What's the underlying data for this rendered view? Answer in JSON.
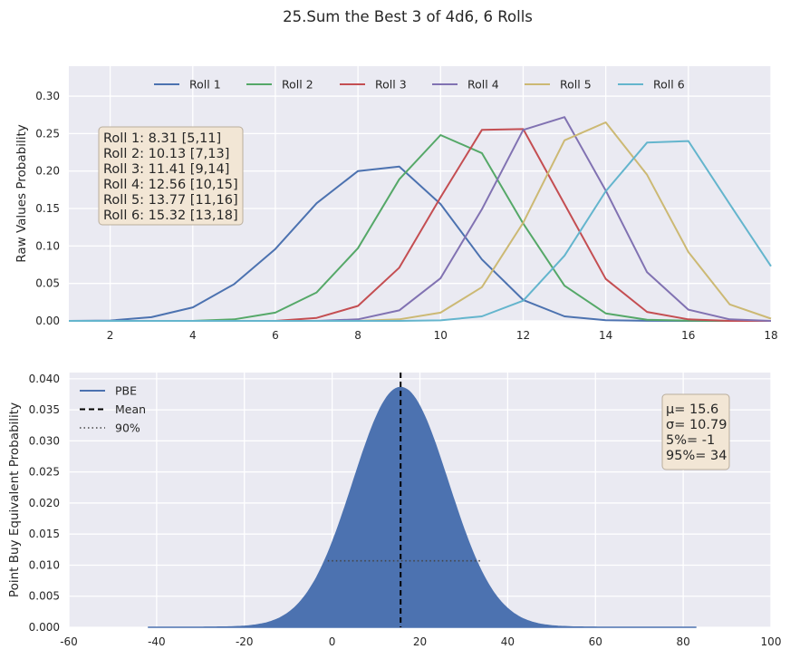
{
  "title": "25.Sum the Best 3 of 4d6, 6 Rolls",
  "chart_data": [
    {
      "type": "line",
      "ylabel": "Raw Values Probability",
      "xlabel": "",
      "xlim": [
        1,
        18
      ],
      "ylim": [
        0,
        0.34
      ],
      "xticks": [
        2,
        4,
        6,
        8,
        10,
        12,
        14,
        16,
        18
      ],
      "yticks": [
        0.0,
        0.05,
        0.1,
        0.15,
        0.2,
        0.25,
        0.3
      ],
      "ytick_labels": [
        "0.00",
        "0.05",
        "0.10",
        "0.15",
        "0.20",
        "0.25",
        "0.30"
      ],
      "grid": true,
      "legend_position": "top-center",
      "x": [
        1,
        2,
        3,
        4,
        5,
        6,
        7,
        8,
        9,
        10,
        11,
        12,
        13,
        14,
        15,
        16,
        17,
        18
      ],
      "series": [
        {
          "name": "Roll 1",
          "color": "#4C72B0",
          "values": [
            0.0,
            0.0005,
            0.005,
            0.018,
            0.049,
            0.096,
            0.157,
            0.2,
            0.206,
            0.156,
            0.082,
            0.028,
            0.006,
            0.0008,
            0.0001,
            0.0,
            0.0,
            0.0
          ]
        },
        {
          "name": "Roll 2",
          "color": "#55A868",
          "values": [
            0.0,
            0.0,
            0.0,
            0.0,
            0.002,
            0.011,
            0.038,
            0.097,
            0.189,
            0.248,
            0.224,
            0.13,
            0.047,
            0.01,
            0.0015,
            0.0002,
            0.0,
            0.0
          ]
        },
        {
          "name": "Roll 3",
          "color": "#C44E52",
          "values": [
            0.0,
            0.0,
            0.0,
            0.0,
            0.0,
            0.0,
            0.004,
            0.02,
            0.071,
            0.165,
            0.255,
            0.256,
            0.156,
            0.056,
            0.012,
            0.002,
            0.0,
            0.0
          ]
        },
        {
          "name": "Roll 4",
          "color": "#8172B2",
          "values": [
            0.0,
            0.0,
            0.0,
            0.0,
            0.0,
            0.0,
            0.0,
            0.002,
            0.014,
            0.057,
            0.149,
            0.255,
            0.272,
            0.174,
            0.065,
            0.015,
            0.002,
            0.0
          ]
        },
        {
          "name": "Roll 5",
          "color": "#CCB974",
          "values": [
            0.0,
            0.0,
            0.0,
            0.0,
            0.0,
            0.0,
            0.0,
            0.0,
            0.002,
            0.011,
            0.045,
            0.131,
            0.241,
            0.265,
            0.195,
            0.092,
            0.022,
            0.003
          ]
        },
        {
          "name": "Roll 6",
          "color": "#64B5CD",
          "values": [
            0.0,
            0.0,
            0.0,
            0.0,
            0.0,
            0.0,
            0.0,
            0.0,
            0.0,
            0.0007,
            0.006,
            0.027,
            0.087,
            0.173,
            0.238,
            0.24,
            0.156,
            0.073
          ]
        }
      ],
      "annotation_lines": [
        "Roll 1: 8.31 [5,11]",
        "Roll 2: 10.13 [7,13]",
        "Roll 3: 11.41 [9,14]",
        "Roll 4: 12.56 [10,15]",
        "Roll 5: 13.77 [11,16]",
        "Roll 6: 15.32 [13,18]"
      ]
    },
    {
      "type": "area",
      "ylabel": "Point Buy Equivalent Probability",
      "xlabel": "",
      "xlim": [
        -60,
        100
      ],
      "ylim": [
        0,
        0.041
      ],
      "xticks": [
        -60,
        -40,
        -20,
        0,
        20,
        40,
        60,
        80,
        100
      ],
      "yticks": [
        0.0,
        0.005,
        0.01,
        0.015,
        0.02,
        0.025,
        0.03,
        0.035,
        0.04
      ],
      "ytick_labels": [
        "0.000",
        "0.005",
        "0.010",
        "0.015",
        "0.020",
        "0.025",
        "0.030",
        "0.035",
        "0.040"
      ],
      "grid": true,
      "legend_position": "top-left",
      "color": "#4C72B0",
      "x_range": [
        -42,
        83
      ],
      "mean": 15.6,
      "std": 10.79,
      "peak": 0.0386,
      "p5": -1,
      "p95": 34,
      "ci_level": 0.0107,
      "legend": [
        {
          "label": "PBE",
          "style": "solid",
          "color": "#4C72B0"
        },
        {
          "label": "Mean",
          "style": "dashed",
          "color": "#000000"
        },
        {
          "label": "90%",
          "style": "dotted",
          "color": "#444444"
        }
      ],
      "annotation_lines": [
        "μ= 15.6",
        "σ= 10.79",
        "5%= -1",
        "95%= 34"
      ]
    }
  ]
}
